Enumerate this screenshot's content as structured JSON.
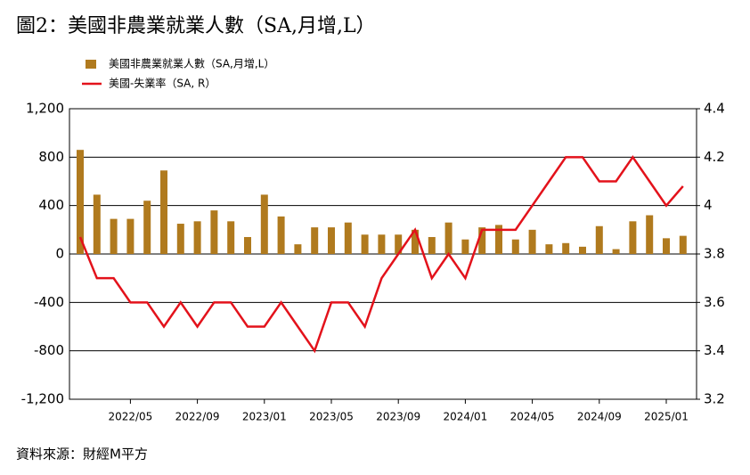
{
  "chart_data": {
    "type": "bar-line",
    "title": "圖2：美國非農業就業人數（SA,月增,L）",
    "source": "資料來源：財經M平方",
    "categories": [
      null,
      null,
      null,
      "2022/05",
      null,
      null,
      null,
      "2022/09",
      null,
      null,
      null,
      "2023/01",
      null,
      null,
      null,
      "2023/05",
      null,
      null,
      null,
      "2023/09",
      null,
      null,
      null,
      "2024/01",
      null,
      null,
      null,
      "2024/05",
      null,
      null,
      null,
      "2024/09",
      null,
      null,
      null,
      "2025/01",
      null
    ],
    "series": [
      {
        "name": "美國非農業就業人數（SA,月增,L）",
        "color": "#b07a1e",
        "type": "bar",
        "values": [
          860,
          490,
          290,
          290,
          440,
          690,
          250,
          270,
          360,
          270,
          140,
          490,
          310,
          80,
          220,
          220,
          260,
          160,
          160,
          160,
          200,
          140,
          260,
          120,
          220,
          240,
          120,
          200,
          80,
          90,
          60,
          230,
          40,
          270,
          320,
          130,
          150
        ]
      },
      {
        "name": "美國-失業率（SA, R）",
        "color": "#e3121b",
        "type": "line",
        "axis": "y2",
        "values": [
          3.87,
          3.7,
          3.7,
          3.6,
          3.6,
          3.5,
          3.6,
          3.5,
          3.6,
          3.6,
          3.5,
          3.5,
          3.6,
          3.5,
          3.4,
          3.6,
          3.6,
          3.5,
          3.7,
          3.8,
          3.9,
          3.7,
          3.8,
          3.7,
          3.9,
          3.9,
          3.9,
          4.0,
          4.1,
          4.2,
          4.2,
          4.1,
          4.1,
          4.2,
          4.1,
          4.0,
          4.08
        ]
      }
    ],
    "ylim": [
      -1200,
      1200
    ],
    "yticks": [
      {
        "value": -1200,
        "label": "-1,200"
      },
      -800,
      -400,
      0,
      400,
      800,
      {
        "value": 1200,
        "label": "1,200"
      }
    ],
    "y2lim": [
      3.2,
      4.4
    ],
    "y2ticks": [
      3.2,
      3.4,
      3.6,
      3.8,
      4,
      4.2,
      4.4
    ],
    "grid": true
  }
}
